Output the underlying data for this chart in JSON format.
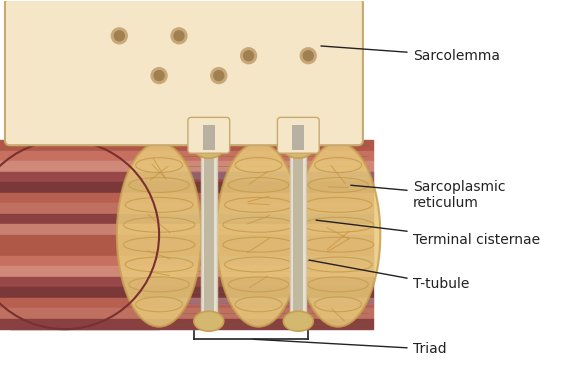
{
  "background_color": "#ffffff",
  "sarcolemma_color": "#f5e6c8",
  "sarcolemma_edge": "#c8a96e",
  "sr_color": "#e8c87a",
  "sr_edge": "#c8a050",
  "muscle_red": "#c07060",
  "muscle_dark_red": "#8b4040",
  "muscle_stripe_colors": [
    "#b05040",
    "#c87060",
    "#d08070",
    "#904040",
    "#7a3030"
  ],
  "t_tubule_color": "#e8e0d0",
  "t_tubule_edge": "#c8b890",
  "terminal_cisternae_color": "#c8b090",
  "gray_color": "#b0b0b0",
  "labels": {
    "sarcolemma": "Sarcolemma",
    "sr": "Sarcoplasmic\nreticulum",
    "terminal": "Terminal cisternae",
    "ttubule": "T-tubule",
    "triad": "Triad"
  },
  "label_fontsize": 10,
  "label_color": "#222222"
}
